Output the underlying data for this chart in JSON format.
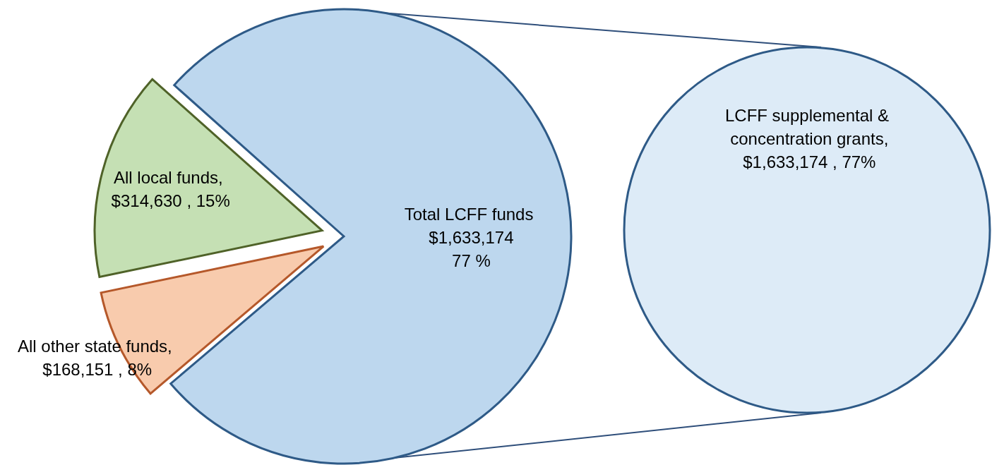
{
  "chart_data": [
    {
      "type": "pie",
      "categories": [
        null,
        null,
        null
      ],
      "values": [
        1633174,
        314630,
        168151
      ],
      "value_labels": [
        "Total LCFF funds\n$1,633,174\n77 %",
        "All local funds,\n$314,630 , 15%",
        "All other state funds,\n$168,151 , 8%"
      ],
      "colors": [
        "#bdd7ee",
        "#c5e0b4",
        "#f8cbad"
      ]
    },
    {
      "type": "pie",
      "categories": [
        null
      ],
      "values": [
        1633174
      ],
      "value_labels": [
        "LCFF supplemental &\nconcentration grants,\n$1,633,174 , 77%"
      ],
      "colors": [
        "#ddebf7"
      ]
    }
  ]
}
